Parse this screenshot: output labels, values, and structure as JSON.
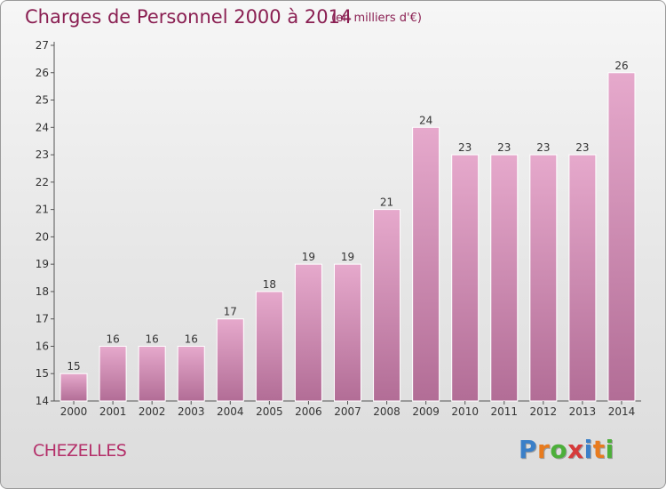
{
  "header": {
    "title": "Charges de Personnel 2000 à 2014",
    "subtitle": "(en milliers d'€)"
  },
  "footer": {
    "commune": "CHEZELLES",
    "logo_letters": [
      "P",
      "r",
      "o",
      "x",
      "i",
      "t",
      "i"
    ],
    "logo_colors": [
      "#3a7fc8",
      "#e87b1e",
      "#4caf3a",
      "#d63a3a",
      "#3a7fc8",
      "#e87b1e",
      "#4caf3a"
    ]
  },
  "colors": {
    "bar_top": "#e6a9cc",
    "bar_bottom": "#b26d96",
    "axis": "#555555",
    "title": "#8a1f52"
  },
  "chart_data": {
    "type": "bar",
    "categories": [
      "2000",
      "2001",
      "2002",
      "2003",
      "2004",
      "2005",
      "2006",
      "2007",
      "2008",
      "2009",
      "2010",
      "2011",
      "2012",
      "2013",
      "2014"
    ],
    "values": [
      15,
      16,
      16,
      16,
      17,
      18,
      19,
      19,
      21,
      24,
      23,
      23,
      23,
      23,
      26
    ],
    "title": "Charges de Personnel 2000 à 2014",
    "subtitle": "(en milliers d'€)",
    "xlabel": "",
    "ylabel": "",
    "ylim": [
      14,
      27
    ],
    "yticks": [
      14,
      15,
      16,
      17,
      18,
      19,
      20,
      21,
      22,
      23,
      24,
      25,
      26,
      27
    ],
    "grid": false,
    "data_labels": true
  }
}
